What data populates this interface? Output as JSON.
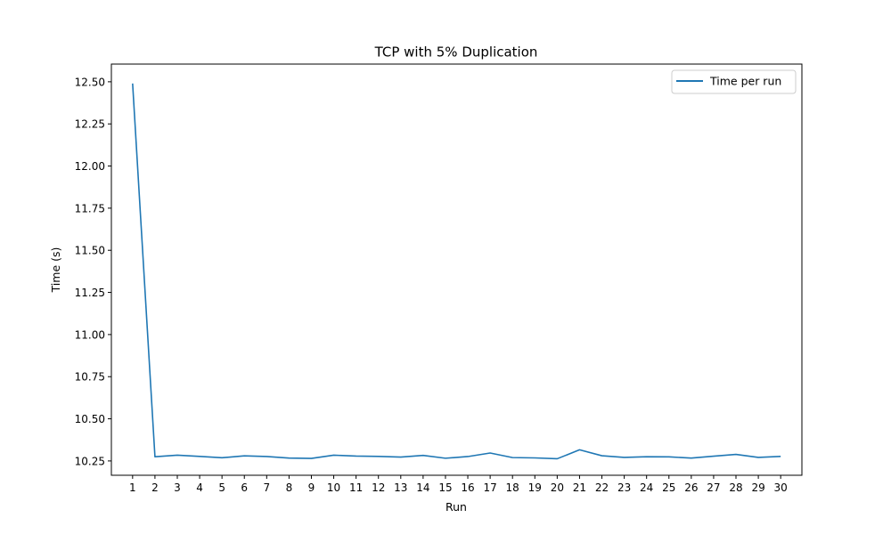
{
  "chart_data": {
    "type": "line",
    "title": "TCP with 5% Duplication",
    "xlabel": "Run",
    "ylabel": "Time (s)",
    "xlim": [
      0.05,
      30.95
    ],
    "ylim": [
      10.165,
      12.605
    ],
    "x_ticks": [
      1,
      2,
      3,
      4,
      5,
      6,
      7,
      8,
      9,
      10,
      11,
      12,
      13,
      14,
      15,
      16,
      17,
      18,
      19,
      20,
      21,
      22,
      23,
      24,
      25,
      26,
      27,
      28,
      29,
      30
    ],
    "y_ticks": [
      10.25,
      10.5,
      10.75,
      11.0,
      11.25,
      11.5,
      11.75,
      12.0,
      12.25,
      12.5
    ],
    "y_tick_labels": [
      "10.25",
      "10.50",
      "10.75",
      "11.00",
      "11.25",
      "11.50",
      "11.75",
      "12.00",
      "12.25",
      "12.50"
    ],
    "grid": false,
    "legend_position": "top-right",
    "series": [
      {
        "name": "Time per run",
        "color": "#1f77b4",
        "x": [
          1,
          2,
          3,
          4,
          5,
          6,
          7,
          8,
          9,
          10,
          11,
          12,
          13,
          14,
          15,
          16,
          17,
          18,
          19,
          20,
          21,
          22,
          23,
          24,
          25,
          26,
          27,
          28,
          29,
          30
        ],
        "values": [
          12.49,
          10.275,
          10.284,
          10.277,
          10.269,
          10.28,
          10.276,
          10.267,
          10.265,
          10.284,
          10.279,
          10.277,
          10.273,
          10.283,
          10.266,
          10.276,
          10.297,
          10.27,
          10.268,
          10.263,
          10.316,
          10.281,
          10.271,
          10.275,
          10.274,
          10.267,
          10.278,
          10.289,
          10.271,
          10.277
        ]
      }
    ]
  }
}
